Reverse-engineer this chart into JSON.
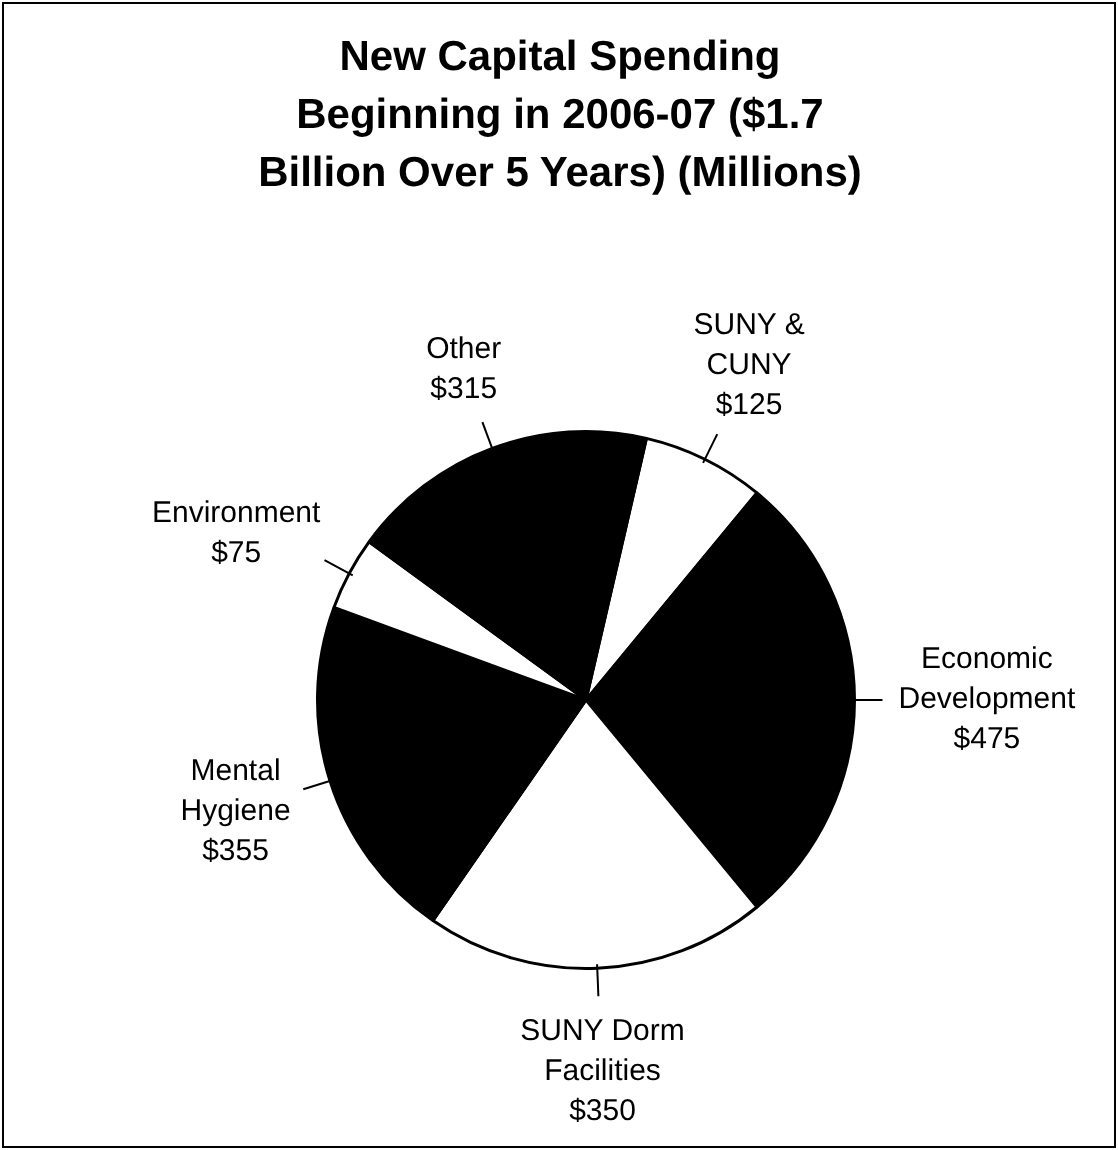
{
  "chart_data": {
    "type": "pie",
    "title": "New Capital Spending Beginning in 2006-07 ($1.7 Billion Over 5 Years) (Millions)",
    "categories": [
      "SUNY & CUNY",
      "Economic Development",
      "SUNY Dorm Facilities",
      "Mental Hygiene",
      "Environment",
      "Other"
    ],
    "values": [
      125,
      475,
      350,
      355,
      75,
      315
    ],
    "value_labels": [
      "$125",
      "$475",
      "$350",
      "$355",
      "$75",
      "$315"
    ],
    "colors": [
      "#ffffff",
      "#000000",
      "#ffffff",
      "#000000",
      "#ffffff",
      "#000000"
    ],
    "legend": false
  }
}
